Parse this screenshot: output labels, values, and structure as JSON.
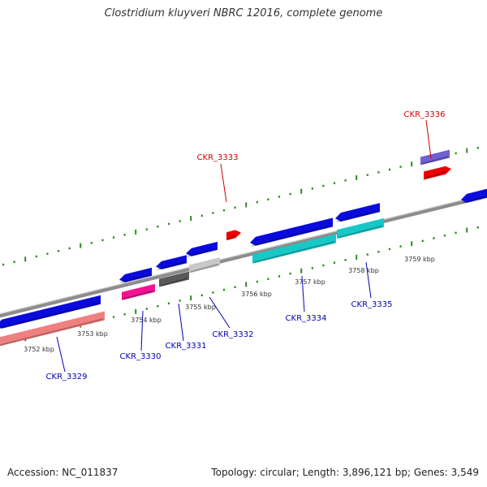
{
  "title": "Clostridium kluyveri NBRC 12016, complete genome",
  "footer": {
    "accession": "Accession: NC_011837",
    "stats": "Topology: circular; Length: 3,896,121 bp; Genes: 3,549"
  },
  "colors": {
    "backbone": "#8c8c8c",
    "tick": "#2e8b1e",
    "gene_label_forward": "#d40000",
    "gene_label_reverse": "#0000b4",
    "kbp_label": "#333333"
  },
  "scale_labels": [
    "3752 kbp",
    "3753 kbp",
    "3754 kbp",
    "3755 kbp",
    "3756 kbp",
    "3757 kbp",
    "3758 kbp",
    "3759 kbp"
  ],
  "genes": [
    {
      "id": "CKR_3329",
      "strand": "reverse",
      "color": "#0a0adc",
      "cds_color": "#f08080"
    },
    {
      "id": "CKR_3330",
      "strand": "reverse",
      "color": "#0a0adc",
      "cds_color": "#f01493"
    },
    {
      "id": "CKR_3331",
      "strand": "reverse",
      "color": "#0a0adc",
      "cds_color": "#5a5a5a"
    },
    {
      "id": "CKR_3332",
      "strand": "reverse",
      "color": "#0a0adc",
      "cds_color": "#c8c8c8"
    },
    {
      "id": "CKR_3333",
      "strand": "forward",
      "color": "#ee0000"
    },
    {
      "id": "CKR_3334",
      "strand": "reverse",
      "color": "#0a0adc",
      "cds_color": "#18c8c8"
    },
    {
      "id": "CKR_3335",
      "strand": "reverse",
      "color": "#0a0adc",
      "cds_color": "#18c8c8"
    },
    {
      "id": "CKR_3336",
      "strand": "forward",
      "color": "#ee0000",
      "cds_color": "#7060d0"
    }
  ]
}
